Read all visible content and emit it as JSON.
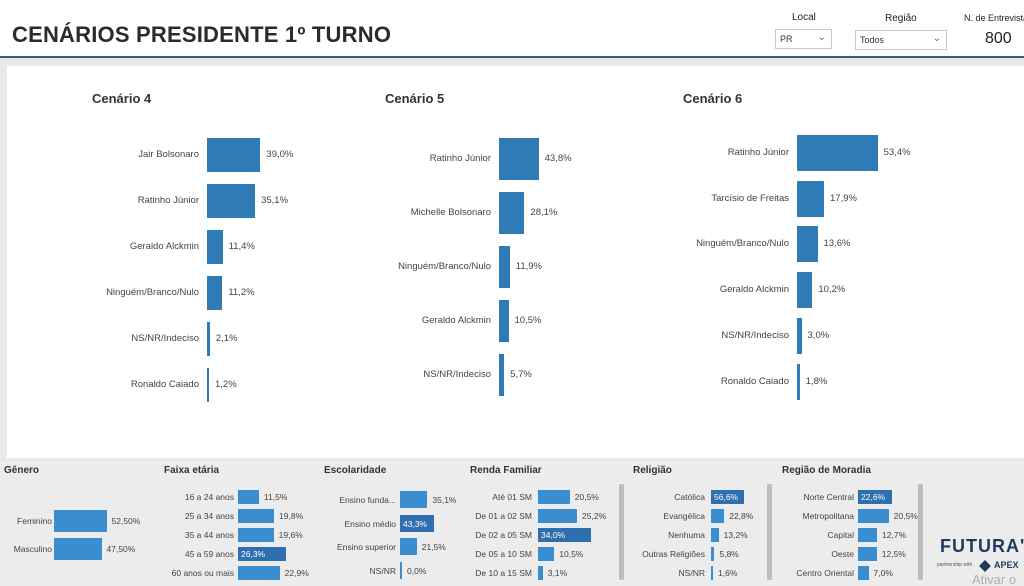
{
  "header": {
    "title": "CENÁRIOS PRESIDENTE 1º TURNO",
    "filters": {
      "local_label": "Local",
      "local_value": "PR",
      "regiao_label": "Região",
      "regiao_value": "Todos",
      "entrevistas_label": "N. de Entrevista",
      "entrevistas_value": "800"
    }
  },
  "chart_data": [
    {
      "type": "bar",
      "title": "Cenário 4",
      "orientation": "horizontal",
      "categories": [
        "Jair Bolsonaro",
        "Ratinho Júnior",
        "Geraldo Alckmin",
        "Ninguém/Branco/Nulo",
        "NS/NR/Indeciso",
        "Ronaldo Caiado"
      ],
      "values": [
        39.0,
        35.1,
        11.4,
        11.2,
        2.1,
        1.2
      ],
      "labels": [
        "39,0%",
        "35,1%",
        "11,4%",
        "11,2%",
        "2,1%",
        "1,2%"
      ]
    },
    {
      "type": "bar",
      "title": "Cenário 5",
      "orientation": "horizontal",
      "categories": [
        "Ratinho Júnior",
        "Michelle Bolsonaro",
        "Ninguém/Branco/Nulo",
        "Geraldo Alckmin",
        "NS/NR/Indeciso"
      ],
      "values": [
        43.8,
        28.1,
        11.9,
        10.5,
        5.7
      ],
      "labels": [
        "43,8%",
        "28,1%",
        "11,9%",
        "10,5%",
        "5,7%"
      ]
    },
    {
      "type": "bar",
      "title": "Cenário 6",
      "orientation": "horizontal",
      "categories": [
        "Ratinho Júnior",
        "Tarcísio de Freitas",
        "Ninguém/Branco/Nulo",
        "Geraldo Alckmin",
        "NS/NR/Indeciso",
        "Ronaldo Caiado"
      ],
      "values": [
        53.4,
        17.9,
        13.6,
        10.2,
        3.0,
        1.8
      ],
      "labels": [
        "53,4%",
        "17,9%",
        "13,6%",
        "10,2%",
        "3,0%",
        "1,8%"
      ]
    },
    {
      "type": "bar",
      "title": "Gênero",
      "orientation": "horizontal",
      "categories": [
        "Feminino",
        "Masculino"
      ],
      "values": [
        52.5,
        47.5
      ],
      "labels": [
        "52,50%",
        "47,50%"
      ]
    },
    {
      "type": "bar",
      "title": "Faixa etária",
      "orientation": "horizontal",
      "categories": [
        "16 a 24 anos",
        "25 a 34 anos",
        "35 a 44 anos",
        "45 a 59 anos",
        "60 anos ou mais"
      ],
      "values": [
        11.5,
        19.8,
        19.6,
        26.3,
        22.9
      ],
      "labels": [
        "11,5%",
        "19,8%",
        "19,6%",
        "26,3%",
        "22,9%"
      ]
    },
    {
      "type": "bar",
      "title": "Escolaridade",
      "orientation": "horizontal",
      "categories": [
        "Ensino funda...",
        "Ensino médio",
        "Ensino superior",
        "NS/NR"
      ],
      "values": [
        35.1,
        43.3,
        21.5,
        0.0
      ],
      "labels": [
        "35,1%",
        "43,3%",
        "21,5%",
        "0,0%"
      ]
    },
    {
      "type": "bar",
      "title": "Renda Familiar",
      "orientation": "horizontal",
      "categories": [
        "Até 01 SM",
        "De 01 a 02 SM",
        "De 02 a 05 SM",
        "De 05 a 10 SM",
        "De 10 a 15 SM"
      ],
      "values": [
        20.5,
        25.2,
        34.0,
        10.5,
        3.1
      ],
      "labels": [
        "20,5%",
        "25,2%",
        "34,0%",
        "10,5%",
        "3,1%"
      ]
    },
    {
      "type": "bar",
      "title": "Religião",
      "orientation": "horizontal",
      "categories": [
        "Católica",
        "Evangélica",
        "Nenhuma",
        "Outras Religiões",
        "NS/NR"
      ],
      "values": [
        56.6,
        22.8,
        13.2,
        5.8,
        1.6
      ],
      "labels": [
        "56,6%",
        "22,8%",
        "13,2%",
        "5,8%",
        "1,6%"
      ]
    },
    {
      "type": "bar",
      "title": "Região de Moradia",
      "orientation": "horizontal",
      "categories": [
        "Norte Central",
        "Metropolitana",
        "Capital",
        "Oeste",
        "Centro Oriental"
      ],
      "values": [
        22.6,
        20.5,
        12.7,
        12.5,
        7.0
      ],
      "labels": [
        "22,6%",
        "20,5%",
        "12,7%",
        "12,5%",
        "7,0%"
      ]
    }
  ],
  "branding": {
    "logo": "FUTURA'",
    "partnership": "partnership with",
    "apex": "APEX",
    "watermark": "Ativar o"
  },
  "colors": {
    "bar_main": "#2e7bb6",
    "bar_small": "#3a8ed0",
    "header_rule": "#2f5f8a"
  }
}
